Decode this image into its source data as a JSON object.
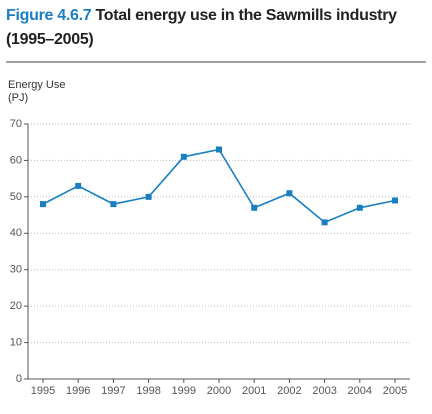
{
  "chart_data": {
    "type": "line",
    "figure_label": "Figure 4.6.7",
    "title": "Total energy use in the Sawmills industry (1995–2005)",
    "ylabel_lines": [
      "Energy Use",
      "(PJ)"
    ],
    "categories": [
      "1995",
      "1996",
      "1997",
      "1998",
      "1999",
      "2000",
      "2001",
      "2002",
      "2003",
      "2004",
      "2005"
    ],
    "series": [
      {
        "name": "Energy Use",
        "color": "#1a7fc1",
        "values": [
          48,
          53,
          48,
          50,
          61,
          63,
          47,
          51,
          43,
          47,
          49
        ]
      }
    ],
    "ylim": [
      0,
      70
    ],
    "yticks": [
      0,
      10,
      20,
      30,
      40,
      50,
      60,
      70
    ],
    "grid": true
  }
}
